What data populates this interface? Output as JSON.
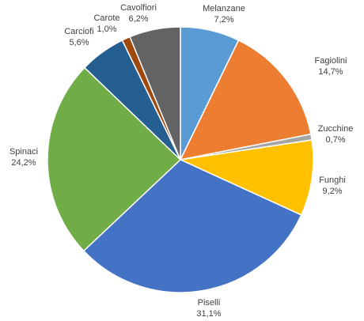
{
  "chart_data": {
    "type": "pie",
    "categories": [
      "Melanzane",
      "Fagiolini",
      "Zucchine",
      "Funghi",
      "Piselli",
      "Spinaci",
      "Carciofi",
      "Carote",
      "Cavolfiori"
    ],
    "values": [
      7.2,
      14.7,
      0.7,
      9.2,
      31.1,
      24.2,
      5.6,
      1.0,
      6.2
    ],
    "value_labels": [
      "7,2%",
      "14,7%",
      "0,7%",
      "9,2%",
      "31,1%",
      "24,2%",
      "5,6%",
      "1,0%",
      "6,2%"
    ],
    "colors": [
      "#5b9bd5",
      "#ed7d31",
      "#a5a5a5",
      "#ffc000",
      "#4472c4",
      "#70ad47",
      "#255e91",
      "#9e480e",
      "#636363"
    ]
  }
}
